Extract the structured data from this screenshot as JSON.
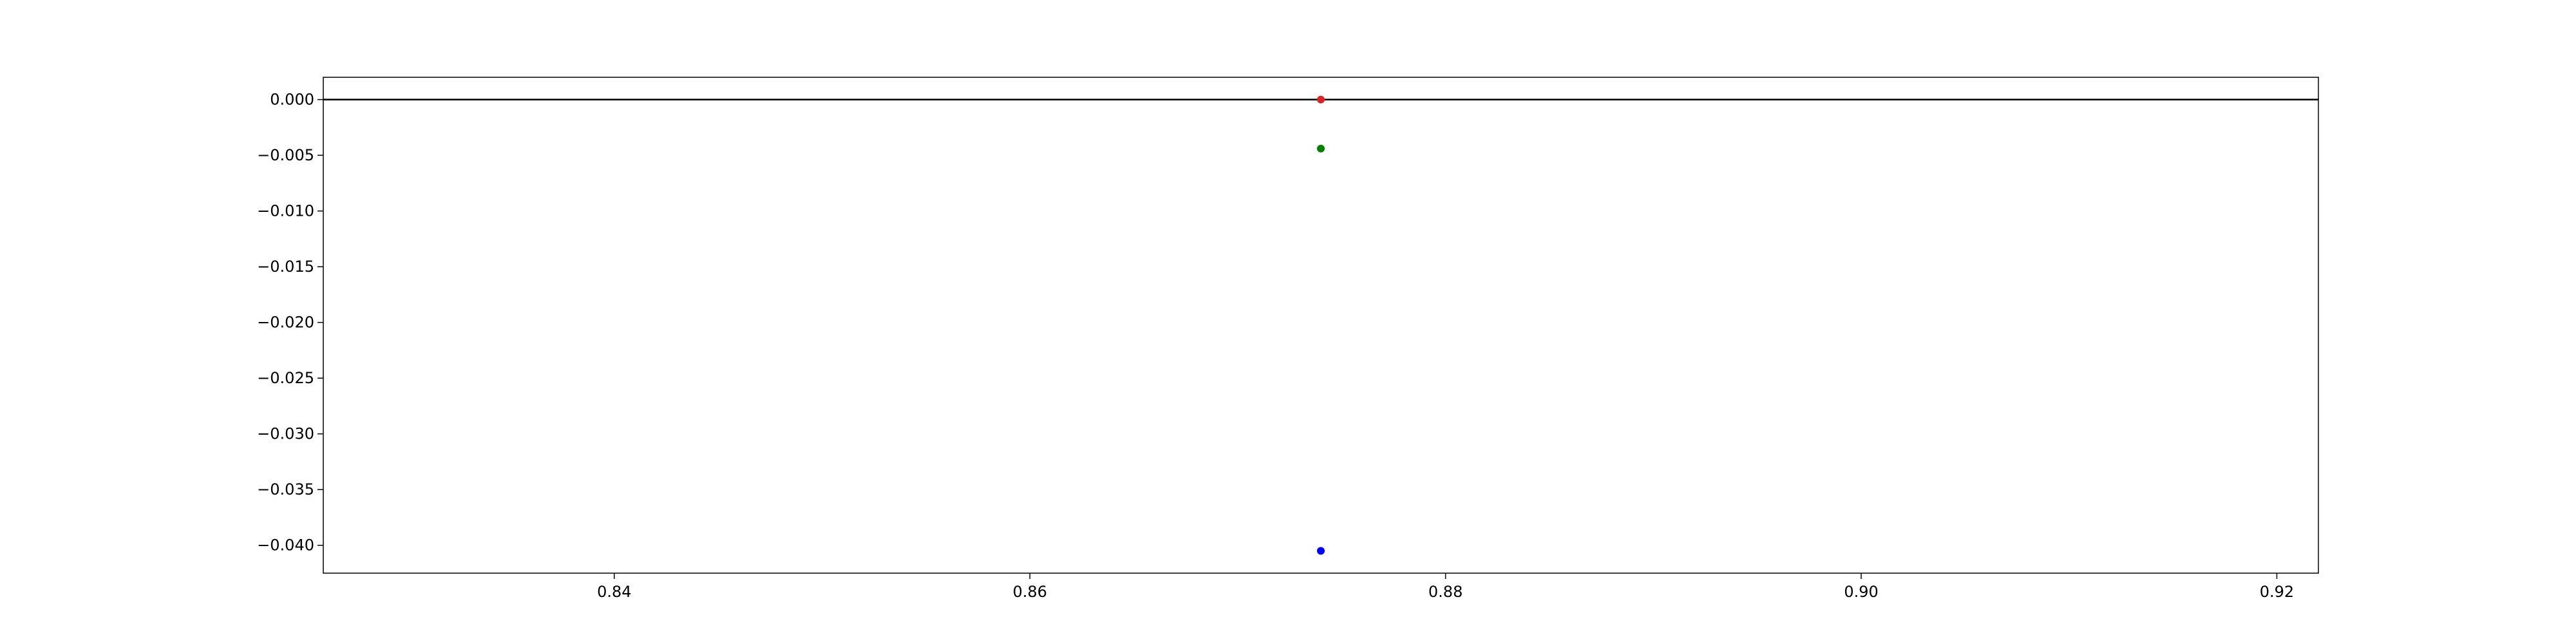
{
  "chart_data": {
    "type": "scatter",
    "title": "",
    "xlabel": "",
    "ylabel": "",
    "xlim": [
      0.826,
      0.922
    ],
    "ylim": [
      -0.0425,
      0.002
    ],
    "x_ticks": [
      0.84,
      0.86,
      0.88,
      0.9,
      0.92
    ],
    "x_tick_labels": [
      "0.84",
      "0.86",
      "0.88",
      "0.90",
      "0.92"
    ],
    "y_ticks": [
      0.0,
      -0.005,
      -0.01,
      -0.015,
      -0.02,
      -0.025,
      -0.03,
      -0.035,
      -0.04
    ],
    "y_tick_labels": [
      "0.000",
      "−0.005",
      "−0.010",
      "−0.015",
      "−0.020",
      "−0.025",
      "−0.030",
      "−0.035",
      "−0.040"
    ],
    "grid": false,
    "legend": false,
    "reference_lines": [
      {
        "orientation": "horizontal",
        "y": 0.0,
        "color": "#000000"
      }
    ],
    "series": [
      {
        "points": [
          {
            "x": 0.874,
            "y": 0.0
          }
        ],
        "color": "#d62728"
      },
      {
        "points": [
          {
            "x": 0.874,
            "y": -0.0044
          }
        ],
        "color": "#008000"
      },
      {
        "points": [
          {
            "x": 0.874,
            "y": -0.0405
          }
        ],
        "color": "#0000ff"
      }
    ]
  }
}
